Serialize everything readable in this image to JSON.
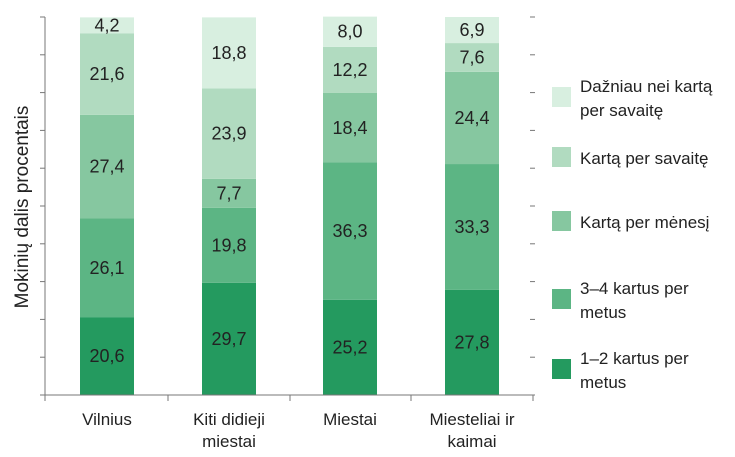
{
  "chart_data": {
    "type": "bar",
    "stacked": true,
    "orientation": "vertical",
    "ylabel": "Mokinių dalis procentais",
    "xlabel": "",
    "title": "",
    "ylim": [
      0,
      100
    ],
    "grid": false,
    "legend_position": "right",
    "categories": [
      [
        "Vilnius"
      ],
      [
        "Kiti didieji",
        "miestai"
      ],
      [
        "Miestai"
      ],
      [
        "Miesteliai ir",
        "kaimai"
      ]
    ],
    "series": [
      {
        "name": [
          "1–2 kartus per",
          "metus"
        ],
        "color": "#249a5f",
        "values": [
          20.6,
          29.7,
          25.2,
          27.8
        ],
        "labels": [
          "20,6",
          "29,7",
          "25,2",
          "27,8"
        ]
      },
      {
        "name": [
          "3–4 kartus per",
          "metus"
        ],
        "color": "#5cb584",
        "values": [
          26.1,
          19.8,
          36.3,
          33.3
        ],
        "labels": [
          "26,1",
          "19,8",
          "36,3",
          "33,3"
        ]
      },
      {
        "name": [
          "Kartą per mėnesį"
        ],
        "color": "#86c7a0",
        "values": [
          27.4,
          7.7,
          18.4,
          24.4
        ],
        "labels": [
          "27,4",
          "7,7",
          "18,4",
          "24,4"
        ]
      },
      {
        "name": [
          "Kartą per savaitę"
        ],
        "color": "#b1dbc0",
        "values": [
          21.6,
          23.9,
          12.2,
          7.6
        ],
        "labels": [
          "21,6",
          "23,9",
          "12,2",
          "7,6"
        ]
      },
      {
        "name": [
          "Dažniau nei kartą",
          "per savaitę"
        ],
        "color": "#d8efe0",
        "values": [
          4.2,
          18.8,
          8.0,
          6.9
        ],
        "labels": [
          "4,2",
          "18,8",
          "8,0",
          "6,9"
        ]
      }
    ]
  }
}
